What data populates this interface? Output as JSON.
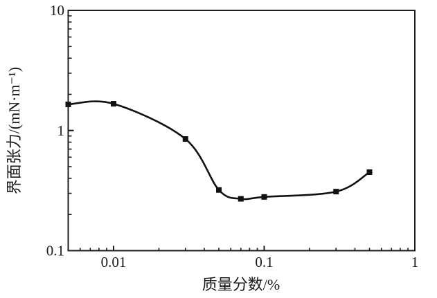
{
  "figure": {
    "background": "#ffffff",
    "frame_color": "#1f1f1f",
    "line_color": "#111111",
    "marker_color": "#111111",
    "text_color": "#1a1a1a"
  },
  "chart_data": {
    "type": "line",
    "x_scale": "log",
    "y_scale": "log",
    "xlim": [
      0.005,
      1
    ],
    "ylim": [
      0.1,
      10
    ],
    "xlabel": "质量分数/%",
    "ylabel": "界面张力/(mN·m⁻¹)",
    "grid": false,
    "legend": false,
    "x_ticks": [
      {
        "value": 0.01,
        "label": "0.01"
      },
      {
        "value": 0.1,
        "label": "0.1"
      },
      {
        "value": 1,
        "label": "1"
      }
    ],
    "y_ticks": [
      {
        "value": 0.1,
        "label": "0.1"
      },
      {
        "value": 1,
        "label": "1"
      },
      {
        "value": 10,
        "label": "10"
      }
    ],
    "series": [
      {
        "name": "界面张力",
        "marker": "square",
        "x": [
          0.005,
          0.01,
          0.03,
          0.05,
          0.07,
          0.1,
          0.3,
          0.5
        ],
        "y": [
          1.65,
          1.67,
          0.85,
          0.32,
          0.27,
          0.28,
          0.31,
          0.45
        ]
      }
    ]
  }
}
